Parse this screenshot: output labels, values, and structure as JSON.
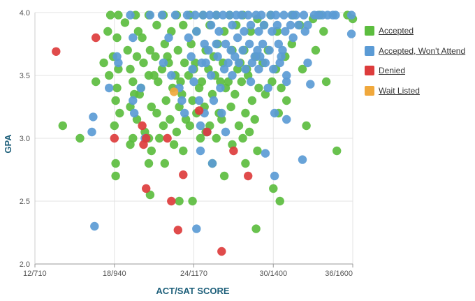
{
  "chart_data": {
    "type": "scatter",
    "title": "",
    "xlabel": "ACT/SAT SCORE",
    "ylabel": "GPA",
    "x_ticks": [
      "12/710",
      "18/940",
      "24/1170",
      "30/1400",
      "36/1600"
    ],
    "x_tick_values": [
      12,
      18,
      24,
      30,
      36
    ],
    "y_ticks": [
      "2.0",
      "2.5",
      "3.0",
      "3.5",
      "4.0"
    ],
    "y_tick_values": [
      2.0,
      2.5,
      3.0,
      3.5,
      4.0
    ],
    "xlim": [
      12,
      36
    ],
    "ylim": [
      2.0,
      4.0
    ],
    "grid": true,
    "legend_position": "right",
    "series": [
      {
        "name": "Accepted",
        "color": "#5cbd3f",
        "points": [
          [
            14.1,
            3.1
          ],
          [
            15.4,
            3.0
          ],
          [
            16.6,
            3.45
          ],
          [
            17.5,
            3.85
          ],
          [
            17.7,
            3.98
          ],
          [
            17.9,
            3.65
          ],
          [
            18.1,
            3.3
          ],
          [
            18.0,
            3.1
          ],
          [
            18.1,
            2.8
          ],
          [
            18.1,
            2.7
          ],
          [
            17.2,
            3.6
          ],
          [
            17.6,
            3.5
          ],
          [
            18.3,
            3.98
          ],
          [
            18.2,
            3.8
          ],
          [
            18.3,
            3.55
          ],
          [
            18.2,
            3.4
          ],
          [
            18.4,
            3.2
          ],
          [
            18.8,
            3.92
          ],
          [
            19.0,
            3.7
          ],
          [
            19.2,
            3.55
          ],
          [
            19.4,
            3.45
          ],
          [
            19.2,
            3.25
          ],
          [
            19.4,
            3.0
          ],
          [
            19.2,
            2.95
          ],
          [
            19.6,
            3.98
          ],
          [
            19.8,
            3.85
          ],
          [
            19.7,
            3.65
          ],
          [
            19.9,
            3.35
          ],
          [
            19.7,
            3.15
          ],
          [
            20.1,
            3.8
          ],
          [
            20.2,
            3.6
          ],
          [
            20.0,
            3.4
          ],
          [
            20.3,
            3.05
          ],
          [
            20.6,
            3.98
          ],
          [
            20.7,
            3.7
          ],
          [
            20.6,
            3.5
          ],
          [
            20.8,
            3.25
          ],
          [
            20.6,
            3.0
          ],
          [
            20.8,
            2.9
          ],
          [
            20.7,
            2.55
          ],
          [
            20.6,
            2.8
          ],
          [
            21.2,
            3.9
          ],
          [
            21.1,
            3.65
          ],
          [
            21.3,
            3.45
          ],
          [
            21.2,
            3.2
          ],
          [
            21.4,
            3.0
          ],
          [
            21.7,
            3.98
          ],
          [
            21.8,
            3.75
          ],
          [
            21.6,
            3.55
          ],
          [
            21.9,
            3.3
          ],
          [
            21.7,
            3.1
          ],
          [
            21.8,
            2.8
          ],
          [
            22.3,
            3.85
          ],
          [
            22.1,
            3.6
          ],
          [
            22.4,
            3.4
          ],
          [
            22.2,
            3.15
          ],
          [
            22.5,
            2.95
          ],
          [
            22.7,
            3.98
          ],
          [
            22.8,
            3.7
          ],
          [
            22.6,
            3.5
          ],
          [
            22.9,
            3.25
          ],
          [
            22.7,
            3.05
          ],
          [
            22.9,
            2.5
          ],
          [
            23.2,
            3.9
          ],
          [
            23.3,
            3.6
          ],
          [
            23.1,
            3.35
          ],
          [
            23.4,
            3.15
          ],
          [
            23.2,
            2.9
          ],
          [
            23.7,
            3.98
          ],
          [
            23.8,
            3.75
          ],
          [
            23.6,
            3.5
          ],
          [
            23.9,
            3.3
          ],
          [
            23.7,
            3.1
          ],
          [
            23.9,
            2.5
          ],
          [
            24.2,
            3.85
          ],
          [
            24.1,
            3.6
          ],
          [
            24.4,
            3.4
          ],
          [
            24.2,
            3.2
          ],
          [
            24.5,
            3.0
          ],
          [
            24.7,
            3.98
          ],
          [
            24.9,
            3.7
          ],
          [
            24.6,
            3.45
          ],
          [
            24.8,
            3.25
          ],
          [
            24.9,
            3.05
          ],
          [
            25.2,
            3.9
          ],
          [
            25.1,
            3.55
          ],
          [
            25.4,
            3.35
          ],
          [
            25.2,
            3.1
          ],
          [
            25.4,
            2.8
          ],
          [
            25.7,
            3.98
          ],
          [
            25.8,
            3.75
          ],
          [
            25.6,
            3.5
          ],
          [
            25.9,
            3.2
          ],
          [
            25.7,
            3.0
          ],
          [
            26.3,
            3.85
          ],
          [
            26.2,
            3.6
          ],
          [
            26.4,
            3.4
          ],
          [
            26.1,
            3.15
          ],
          [
            26.3,
            2.7
          ],
          [
            26.7,
            3.98
          ],
          [
            26.9,
            3.7
          ],
          [
            26.6,
            3.45
          ],
          [
            26.8,
            3.25
          ],
          [
            26.9,
            2.95
          ],
          [
            27.2,
            3.9
          ],
          [
            27.3,
            3.55
          ],
          [
            27.1,
            3.35
          ],
          [
            27.4,
            3.1
          ],
          [
            27.7,
            3.98
          ],
          [
            27.8,
            3.7
          ],
          [
            27.6,
            3.45
          ],
          [
            27.9,
            3.2
          ],
          [
            27.7,
            3.0
          ],
          [
            27.9,
            2.8
          ],
          [
            28.3,
            3.85
          ],
          [
            28.1,
            3.5
          ],
          [
            28.4,
            3.3
          ],
          [
            28.2,
            3.05
          ],
          [
            28.8,
            3.95
          ],
          [
            28.7,
            3.65
          ],
          [
            28.9,
            3.4
          ],
          [
            28.6,
            3.15
          ],
          [
            28.8,
            2.9
          ],
          [
            28.7,
            2.28
          ],
          [
            29.3,
            3.9
          ],
          [
            29.2,
            3.6
          ],
          [
            29.4,
            3.35
          ],
          [
            29.8,
            3.98
          ],
          [
            29.6,
            3.7
          ],
          [
            29.9,
            3.45
          ],
          [
            30.0,
            2.6
          ],
          [
            30.3,
            3.85
          ],
          [
            30.2,
            3.55
          ],
          [
            30.4,
            3.2
          ],
          [
            30.5,
            2.5
          ],
          [
            30.9,
            3.65
          ],
          [
            31.0,
            3.3
          ],
          [
            31.5,
            3.98
          ],
          [
            31.4,
            3.75
          ],
          [
            32.0,
            3.9
          ],
          [
            32.2,
            3.55
          ],
          [
            32.5,
            3.1
          ],
          [
            33.0,
            3.95
          ],
          [
            33.2,
            3.7
          ],
          [
            33.5,
            3.98
          ],
          [
            33.8,
            3.85
          ],
          [
            34.0,
            3.45
          ],
          [
            34.8,
            2.9
          ],
          [
            35.6,
            3.98
          ],
          [
            36.0,
            3.95
          ],
          [
            19.5,
            3.35
          ],
          [
            22.0,
            3.65
          ],
          [
            24.0,
            3.55
          ],
          [
            26.0,
            3.45
          ],
          [
            28.0,
            3.55
          ],
          [
            30.6,
            3.4
          ],
          [
            21.0,
            3.5
          ],
          [
            23.0,
            3.45
          ],
          [
            25.5,
            3.65
          ],
          [
            27.5,
            3.6
          ]
        ]
      },
      {
        "name": "Accepted, Won't Attend",
        "color": "#5b9bd5",
        "points": [
          [
            16.3,
            3.05
          ],
          [
            16.4,
            3.17
          ],
          [
            16.5,
            2.3
          ],
          [
            17.6,
            3.4
          ],
          [
            18.2,
            3.65
          ],
          [
            18.3,
            3.6
          ],
          [
            19.2,
            3.98
          ],
          [
            19.4,
            3.8
          ],
          [
            19.4,
            3.3
          ],
          [
            19.5,
            3.2
          ],
          [
            20.0,
            3.4
          ],
          [
            20.3,
            3.0
          ],
          [
            20.7,
            3.98
          ],
          [
            21.6,
            3.98
          ],
          [
            21.7,
            3.6
          ],
          [
            22.1,
            3.8
          ],
          [
            22.3,
            3.5
          ],
          [
            22.6,
            3.98
          ],
          [
            22.9,
            3.4
          ],
          [
            23.1,
            3.3
          ],
          [
            23.3,
            3.2
          ],
          [
            23.5,
            3.98
          ],
          [
            23.6,
            3.8
          ],
          [
            23.8,
            3.65
          ],
          [
            23.9,
            3.55
          ],
          [
            24.1,
            3.98
          ],
          [
            24.2,
            3.85
          ],
          [
            24.0,
            3.45
          ],
          [
            24.2,
            2.28
          ],
          [
            24.4,
            3.3
          ],
          [
            24.5,
            3.1
          ],
          [
            24.5,
            2.9
          ],
          [
            24.7,
            3.98
          ],
          [
            24.8,
            3.75
          ],
          [
            24.9,
            3.6
          ],
          [
            24.8,
            3.2
          ],
          [
            25.0,
            3.05
          ],
          [
            25.2,
            3.98
          ],
          [
            25.3,
            3.9
          ],
          [
            25.1,
            3.7
          ],
          [
            25.3,
            3.5
          ],
          [
            25.5,
            3.3
          ],
          [
            25.4,
            2.8
          ],
          [
            25.7,
            3.98
          ],
          [
            25.9,
            3.85
          ],
          [
            25.8,
            3.65
          ],
          [
            26.0,
            3.4
          ],
          [
            26.2,
            3.98
          ],
          [
            26.4,
            3.75
          ],
          [
            26.3,
            3.55
          ],
          [
            26.1,
            3.2
          ],
          [
            26.4,
            3.05
          ],
          [
            26.7,
            3.98
          ],
          [
            26.9,
            3.9
          ],
          [
            26.8,
            3.7
          ],
          [
            26.9,
            3.5
          ],
          [
            27.2,
            3.98
          ],
          [
            27.3,
            3.8
          ],
          [
            27.4,
            3.6
          ],
          [
            27.6,
            3.98
          ],
          [
            27.8,
            3.85
          ],
          [
            27.7,
            3.7
          ],
          [
            27.9,
            3.55
          ],
          [
            28.1,
            3.98
          ],
          [
            28.3,
            3.9
          ],
          [
            28.2,
            3.75
          ],
          [
            28.4,
            3.6
          ],
          [
            28.3,
            3.45
          ],
          [
            28.7,
            3.98
          ],
          [
            28.9,
            3.85
          ],
          [
            28.8,
            3.7
          ],
          [
            28.9,
            3.55
          ],
          [
            29.1,
            3.98
          ],
          [
            29.3,
            3.9
          ],
          [
            29.2,
            3.75
          ],
          [
            29.4,
            3.6
          ],
          [
            29.6,
            3.4
          ],
          [
            29.4,
            2.88
          ],
          [
            29.8,
            3.98
          ],
          [
            29.9,
            3.85
          ],
          [
            29.7,
            3.7
          ],
          [
            30.0,
            3.55
          ],
          [
            30.1,
            3.2
          ],
          [
            30.2,
            3.98
          ],
          [
            30.3,
            3.9
          ],
          [
            30.4,
            3.75
          ],
          [
            30.5,
            3.6
          ],
          [
            30.1,
            2.7
          ],
          [
            30.8,
            3.98
          ],
          [
            30.9,
            3.85
          ],
          [
            30.7,
            3.7
          ],
          [
            31.0,
            3.5
          ],
          [
            31.0,
            3.15
          ],
          [
            31.4,
            3.98
          ],
          [
            31.3,
            3.9
          ],
          [
            31.5,
            3.8
          ],
          [
            31.7,
            3.98
          ],
          [
            31.9,
            3.9
          ],
          [
            32.3,
            3.98
          ],
          [
            32.6,
            3.9
          ],
          [
            32.4,
            3.85
          ],
          [
            32.6,
            3.6
          ],
          [
            32.2,
            2.83
          ],
          [
            33.1,
            3.98
          ],
          [
            33.4,
            3.98
          ],
          [
            33.7,
            3.98
          ],
          [
            34.1,
            3.98
          ],
          [
            34.5,
            3.98
          ],
          [
            34.7,
            3.98
          ],
          [
            35.9,
            3.98
          ],
          [
            35.9,
            3.83
          ],
          [
            31.0,
            3.45
          ],
          [
            32.8,
            3.43
          ],
          [
            25.7,
            3.75
          ],
          [
            27.1,
            3.65
          ],
          [
            29.0,
            3.65
          ],
          [
            26.6,
            3.6
          ],
          [
            24.6,
            3.6
          ],
          [
            30.6,
            3.65
          ],
          [
            28.6,
            3.65
          ]
        ]
      },
      {
        "name": "Denied",
        "color": "#dd3c3c",
        "points": [
          [
            13.6,
            3.69
          ],
          [
            16.6,
            3.8
          ],
          [
            18.0,
            3.0
          ],
          [
            20.1,
            3.1
          ],
          [
            20.2,
            2.95
          ],
          [
            20.4,
            3.0
          ],
          [
            20.4,
            2.6
          ],
          [
            22.0,
            3.0
          ],
          [
            22.3,
            2.5
          ],
          [
            22.8,
            2.27
          ],
          [
            23.2,
            2.71
          ],
          [
            24.4,
            3.22
          ],
          [
            25.0,
            3.05
          ],
          [
            26.1,
            2.1
          ],
          [
            27.0,
            2.9
          ],
          [
            28.1,
            2.7
          ]
        ]
      },
      {
        "name": "Wait Listed",
        "color": "#f0a83c",
        "points": [
          [
            22.5,
            3.37
          ]
        ]
      }
    ]
  }
}
